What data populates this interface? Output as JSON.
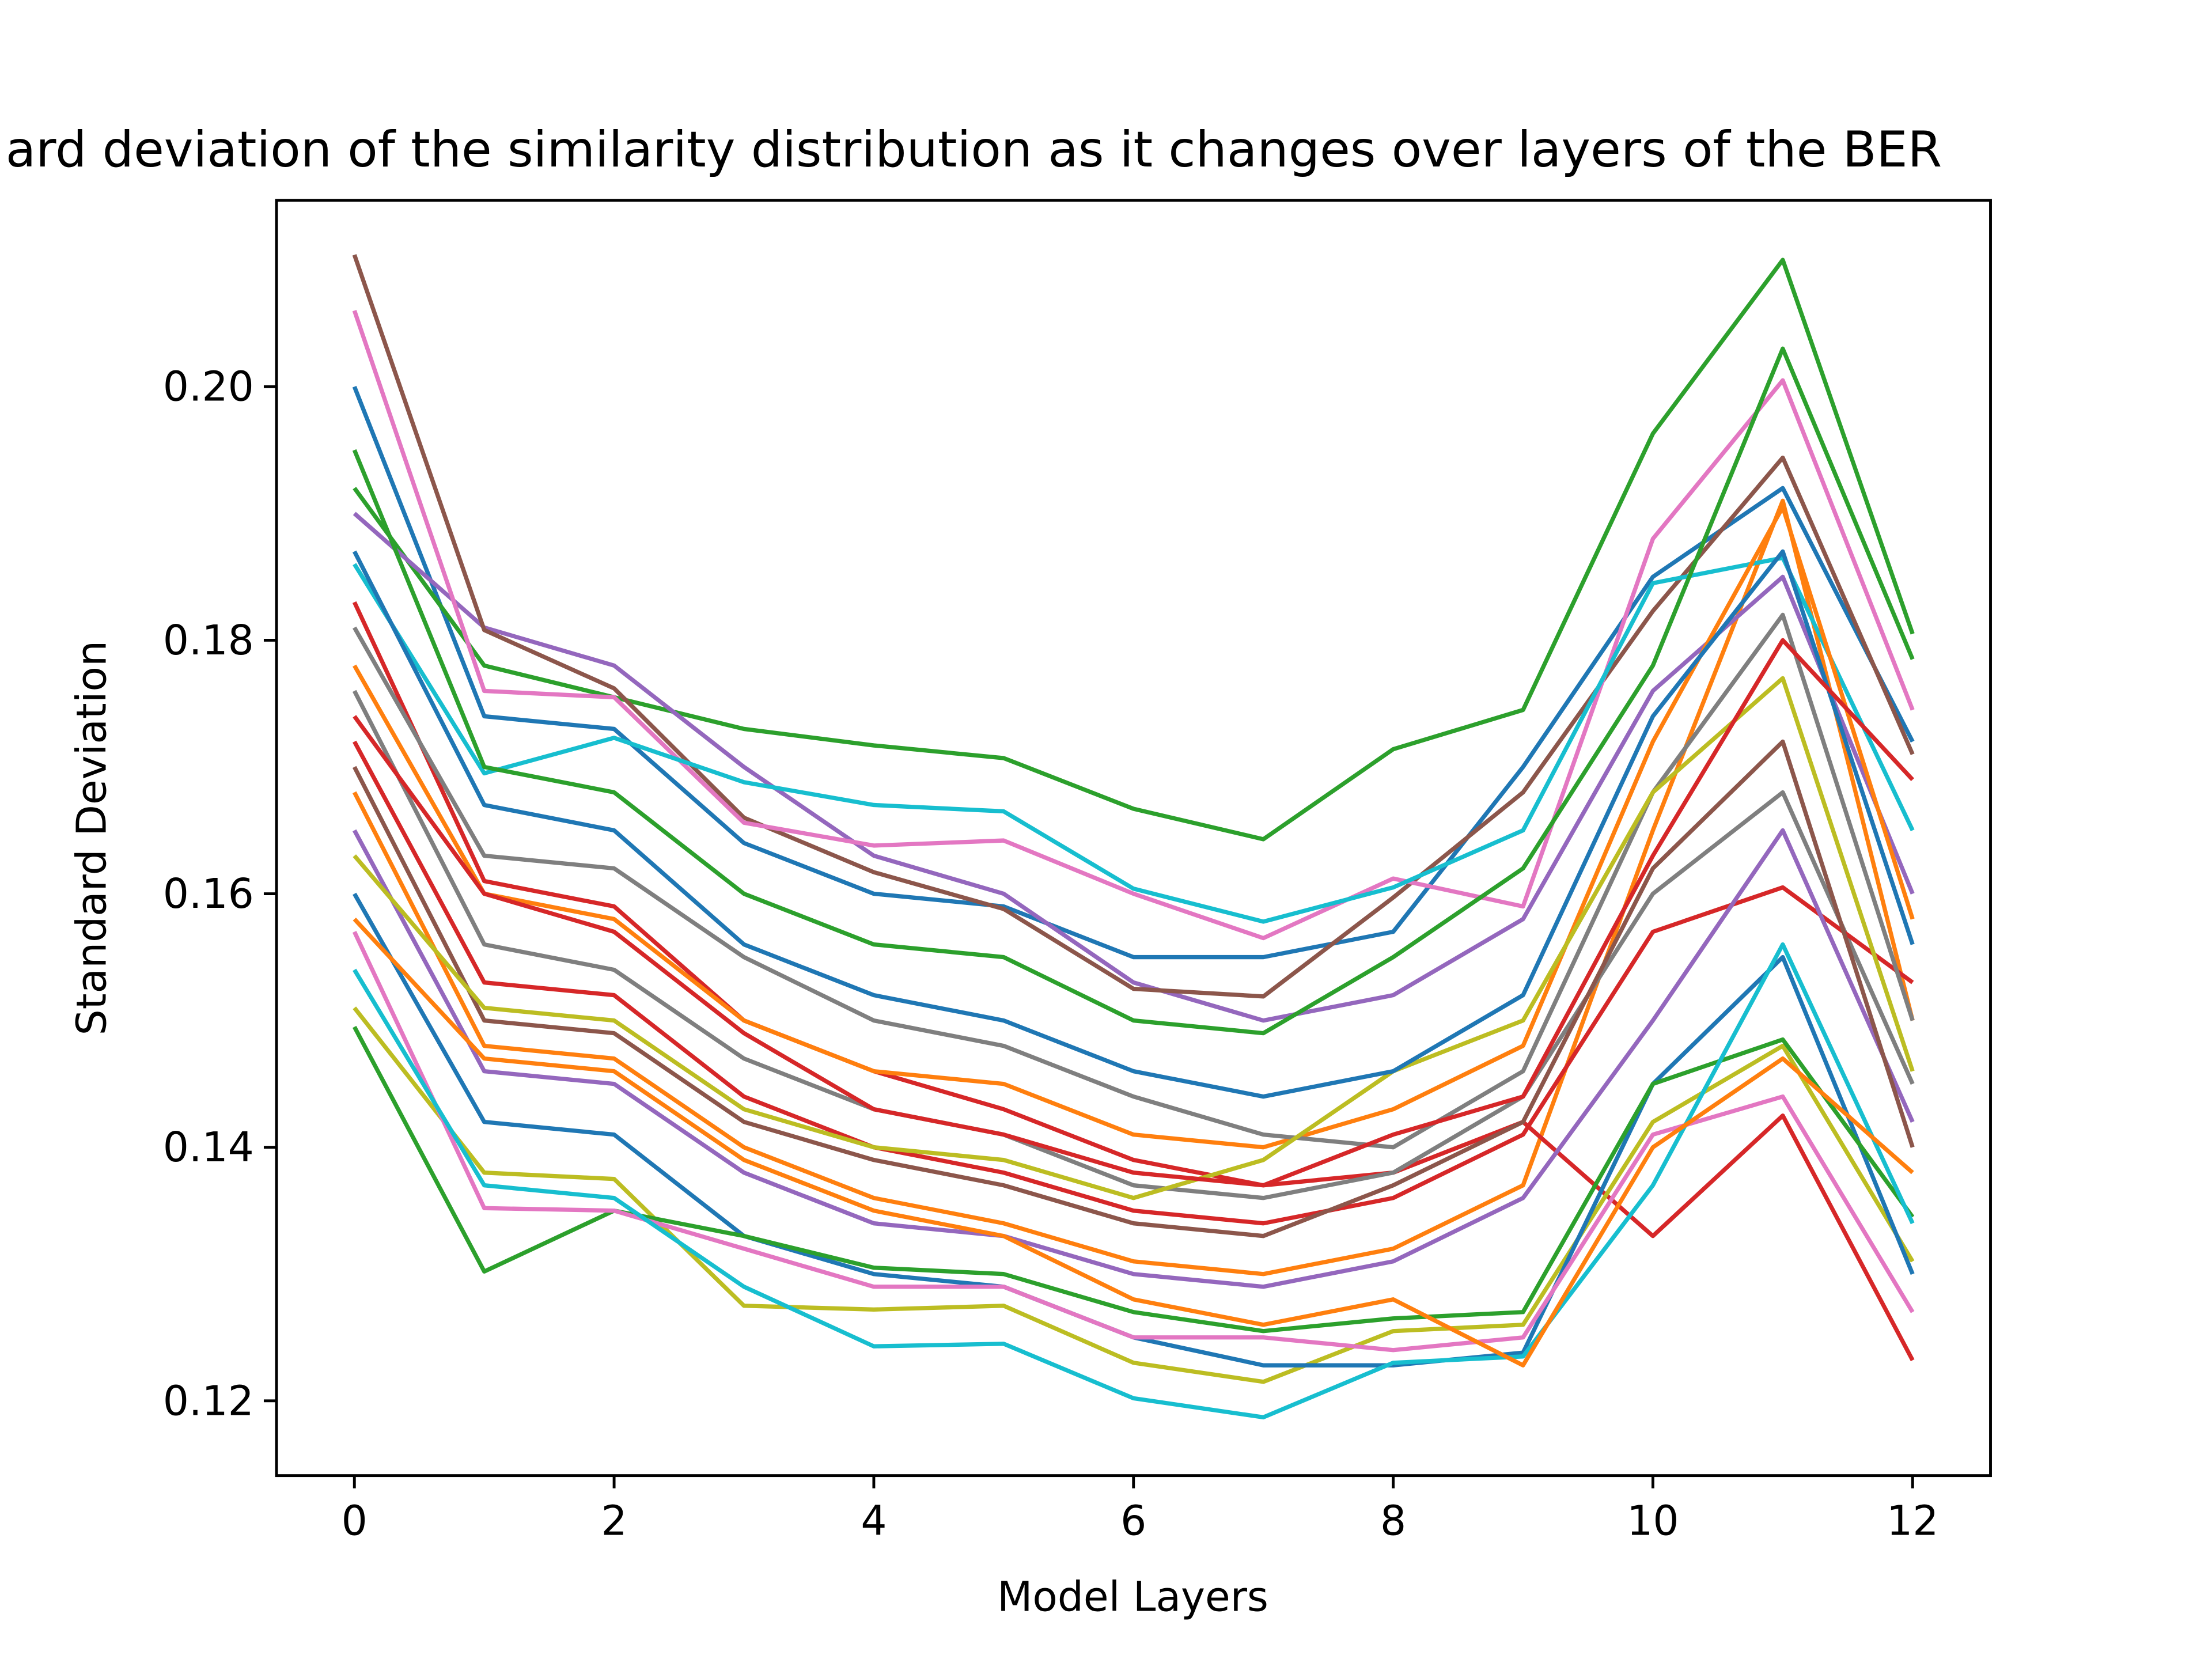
{
  "chart_data": {
    "type": "line",
    "title": "ard deviation of the similarity distribution as it changes over layers of the BER",
    "x_label": "Model Layers",
    "y_label": "Standard Deviation",
    "x": [
      0,
      1,
      2,
      3,
      4,
      5,
      6,
      7,
      8,
      9,
      10,
      11,
      12
    ],
    "xlim": [
      -0.6,
      12.6
    ],
    "ylim": [
      0.1141,
      0.2147
    ],
    "xticks": [
      0,
      2,
      4,
      6,
      8,
      10,
      12
    ],
    "yticks": [
      0.12,
      0.14,
      0.16,
      0.18,
      {
        "value": 0.2,
        "label": "0.20"
      }
    ],
    "series": [
      {
        "color": "#1f77b4",
        "values": [
          0.2,
          0.174,
          0.173,
          0.164,
          0.16,
          0.159,
          0.155,
          0.155,
          0.157,
          0.17,
          0.185,
          0.192,
          0.172
        ]
      },
      {
        "color": "#ff7f0e",
        "values": [
          0.168,
          0.148,
          0.147,
          0.14,
          0.136,
          0.134,
          0.131,
          0.13,
          0.132,
          0.137,
          0.165,
          0.191,
          0.15
        ]
      },
      {
        "color": "#2ca02c",
        "values": [
          0.192,
          0.178,
          0.1755,
          0.173,
          0.1717,
          0.1707,
          0.1667,
          0.1643,
          0.1714,
          0.1745,
          0.1963,
          0.21,
          0.1805
        ]
      },
      {
        "color": "#d62728",
        "values": [
          0.183,
          0.161,
          0.159,
          0.15,
          0.146,
          0.143,
          0.139,
          0.137,
          0.138,
          0.142,
          0.133,
          0.1425,
          0.1232
        ]
      },
      {
        "color": "#9467bd",
        "values": [
          0.19,
          0.181,
          0.178,
          0.17,
          0.163,
          0.16,
          0.153,
          0.15,
          0.152,
          0.158,
          0.176,
          0.185,
          0.16
        ]
      },
      {
        "color": "#8c564b",
        "values": [
          0.2104,
          0.1808,
          0.1762,
          0.166,
          0.1617,
          0.1588,
          0.1525,
          0.1519,
          0.1597,
          0.168,
          0.1823,
          0.1944,
          0.171
        ]
      },
      {
        "color": "#e377c2",
        "values": [
          0.206,
          0.176,
          0.1755,
          0.1656,
          0.1638,
          0.1642,
          0.16,
          0.1565,
          0.1612,
          0.159,
          0.188,
          0.2005,
          0.1745
        ]
      },
      {
        "color": "#7f7f7f",
        "values": [
          0.176,
          0.156,
          0.154,
          0.147,
          0.143,
          0.141,
          0.137,
          0.136,
          0.138,
          0.144,
          0.16,
          0.168,
          0.145
        ]
      },
      {
        "color": "#bcbd22",
        "values": [
          0.151,
          0.138,
          0.1375,
          0.1275,
          0.1272,
          0.1275,
          0.123,
          0.1215,
          0.1255,
          0.126,
          0.142,
          0.148,
          0.131
        ]
      },
      {
        "color": "#17becf",
        "values": [
          0.186,
          0.1695,
          0.1723,
          0.1688,
          0.167,
          0.1665,
          0.1604,
          0.1578,
          0.1605,
          0.165,
          0.1845,
          0.1865,
          0.165
        ]
      },
      {
        "color": "#1f77b4",
        "values": [
          0.16,
          0.142,
          0.141,
          0.133,
          0.13,
          0.129,
          0.125,
          0.1228,
          0.1228,
          0.1238,
          0.145,
          0.155,
          0.13
        ]
      },
      {
        "color": "#ff7f0e",
        "values": [
          0.178,
          0.16,
          0.158,
          0.15,
          0.146,
          0.145,
          0.141,
          0.14,
          0.143,
          0.148,
          0.172,
          0.1905,
          0.158
        ]
      },
      {
        "color": "#2ca02c",
        "values": [
          0.1495,
          0.1302,
          0.135,
          0.133,
          0.1305,
          0.13,
          0.127,
          0.1255,
          0.1265,
          0.127,
          0.145,
          0.1485,
          0.1345
        ]
      },
      {
        "color": "#d62728",
        "values": [
          0.172,
          0.153,
          0.152,
          0.144,
          0.14,
          0.138,
          0.135,
          0.134,
          0.136,
          0.141,
          0.157,
          0.1605,
          0.153
        ]
      },
      {
        "color": "#9467bd",
        "values": [
          0.165,
          0.146,
          0.145,
          0.138,
          0.134,
          0.133,
          0.13,
          0.129,
          0.131,
          0.136,
          0.15,
          0.165,
          0.142
        ]
      },
      {
        "color": "#8c564b",
        "values": [
          0.17,
          0.15,
          0.149,
          0.142,
          0.139,
          0.137,
          0.134,
          0.133,
          0.137,
          0.142,
          0.162,
          0.172,
          0.14
        ]
      },
      {
        "color": "#e377c2",
        "values": [
          0.157,
          0.1352,
          0.135,
          0.132,
          0.129,
          0.129,
          0.125,
          0.125,
          0.124,
          0.125,
          0.141,
          0.144,
          0.127
        ]
      },
      {
        "color": "#7f7f7f",
        "values": [
          0.181,
          0.163,
          0.162,
          0.155,
          0.15,
          0.148,
          0.144,
          0.141,
          0.14,
          0.146,
          0.168,
          0.182,
          0.15
        ]
      },
      {
        "color": "#bcbd22",
        "values": [
          0.163,
          0.151,
          0.15,
          0.143,
          0.14,
          0.139,
          0.136,
          0.139,
          0.146,
          0.15,
          0.168,
          0.177,
          0.146
        ]
      },
      {
        "color": "#17becf",
        "values": [
          0.154,
          0.137,
          0.136,
          0.129,
          0.1243,
          0.1245,
          0.1202,
          0.1187,
          0.123,
          0.1235,
          0.137,
          0.156,
          0.134
        ]
      },
      {
        "color": "#1f77b4",
        "values": [
          0.187,
          0.167,
          0.165,
          0.156,
          0.152,
          0.15,
          0.146,
          0.144,
          0.146,
          0.152,
          0.174,
          0.187,
          0.156
        ]
      },
      {
        "color": "#ff7f0e",
        "values": [
          0.158,
          0.147,
          0.146,
          0.139,
          0.135,
          0.133,
          0.128,
          0.126,
          0.128,
          0.1228,
          0.14,
          0.147,
          0.138
        ]
      },
      {
        "color": "#2ca02c",
        "values": [
          0.195,
          0.17,
          0.168,
          0.16,
          0.156,
          0.155,
          0.15,
          0.149,
          0.155,
          0.162,
          0.178,
          0.203,
          0.1785
        ]
      },
      {
        "color": "#d62728",
        "values": [
          0.174,
          0.16,
          0.157,
          0.149,
          0.143,
          0.141,
          0.138,
          0.137,
          0.141,
          0.144,
          0.163,
          0.18,
          0.169
        ]
      }
    ]
  }
}
